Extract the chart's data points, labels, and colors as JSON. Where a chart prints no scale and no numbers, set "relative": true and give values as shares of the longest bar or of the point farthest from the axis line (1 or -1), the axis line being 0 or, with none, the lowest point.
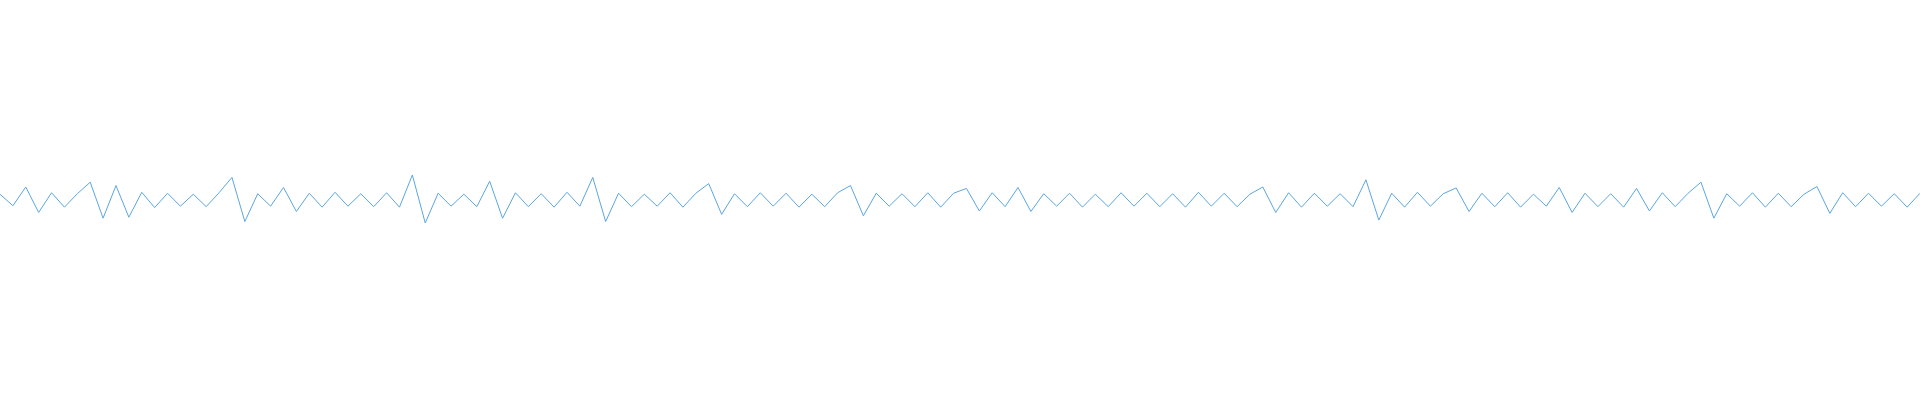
{
  "chart_data": {
    "type": "line",
    "relative": true,
    "color": "#5aa6e0",
    "categories": [
      null,
      null,
      null,
      null,
      null,
      null,
      null,
      null,
      null,
      null,
      null,
      null,
      null,
      null,
      null,
      null,
      null,
      null,
      null,
      null,
      null,
      null,
      null,
      null,
      null,
      null,
      null,
      null,
      null,
      null,
      null,
      null,
      null,
      null,
      null,
      null,
      null,
      null,
      null,
      null,
      null,
      null,
      null,
      null,
      null,
      null,
      null,
      null,
      null,
      null,
      null,
      null,
      null,
      null,
      null,
      null,
      null,
      null,
      null,
      null,
      null,
      null,
      null,
      null,
      null,
      null,
      null,
      null,
      null,
      null,
      null,
      null,
      null,
      null,
      null,
      null,
      null,
      null,
      null,
      null,
      null,
      null,
      null,
      null,
      null,
      null,
      null,
      null,
      null,
      null,
      null,
      null,
      null,
      null,
      null,
      null,
      null,
      null,
      null,
      null,
      null,
      null,
      null,
      null,
      null,
      null,
      null,
      null,
      null,
      null,
      null,
      null,
      null,
      null,
      null,
      null,
      null,
      null,
      null,
      null,
      null,
      null,
      null,
      null,
      null,
      null,
      null,
      null,
      null,
      null,
      null,
      null,
      null,
      null,
      null,
      null,
      null,
      null,
      null,
      null,
      null,
      null,
      null,
      null,
      null,
      null,
      null,
      null,
      null,
      null
    ],
    "values": [
      0.6,
      0.36,
      0.75,
      0.22,
      0.63,
      0.33,
      0.61,
      0.85,
      0.1,
      0.78,
      0.12,
      0.64,
      0.32,
      0.62,
      0.35,
      0.6,
      0.34,
      0.63,
      0.95,
      0.03,
      0.61,
      0.35,
      0.74,
      0.24,
      0.62,
      0.33,
      0.64,
      0.35,
      0.61,
      0.34,
      0.63,
      0.33,
      1.0,
      0.0,
      0.62,
      0.35,
      0.6,
      0.34,
      0.87,
      0.1,
      0.63,
      0.34,
      0.61,
      0.33,
      0.64,
      0.35,
      0.95,
      0.03,
      0.62,
      0.34,
      0.6,
      0.35,
      0.63,
      0.33,
      0.62,
      0.82,
      0.18,
      0.61,
      0.34,
      0.63,
      0.35,
      0.62,
      0.33,
      0.6,
      0.34,
      0.63,
      0.78,
      0.15,
      0.62,
      0.35,
      0.61,
      0.34,
      0.63,
      0.33,
      0.62,
      0.72,
      0.25,
      0.63,
      0.34,
      0.74,
      0.24,
      0.61,
      0.35,
      0.62,
      0.33,
      0.6,
      0.34,
      0.63,
      0.35,
      0.62,
      0.34,
      0.61,
      0.33,
      0.64,
      0.35,
      0.62,
      0.34,
      0.6,
      0.75,
      0.22,
      0.63,
      0.33,
      0.62,
      0.35,
      0.61,
      0.34,
      0.9,
      0.06,
      0.62,
      0.33,
      0.64,
      0.35,
      0.61,
      0.73,
      0.24,
      0.62,
      0.34,
      0.63,
      0.33,
      0.6,
      0.35,
      0.74,
      0.22,
      0.62,
      0.34,
      0.61,
      0.33,
      0.72,
      0.25,
      0.63,
      0.34,
      0.62,
      0.85,
      0.1,
      0.61,
      0.35,
      0.63,
      0.33,
      0.62,
      0.34,
      0.6,
      0.76,
      0.2,
      0.63,
      0.34,
      0.62,
      0.35,
      0.61,
      0.33,
      0.62
    ]
  }
}
